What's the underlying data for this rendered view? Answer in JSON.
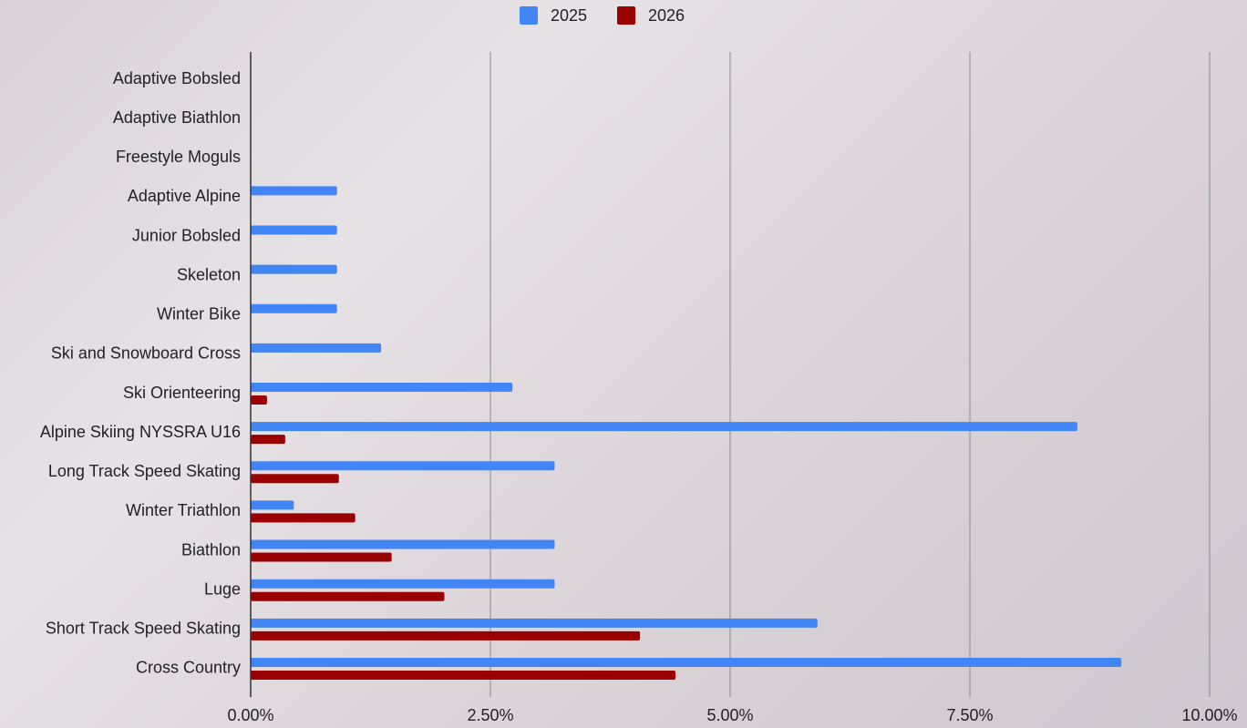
{
  "chart_data": {
    "type": "bar",
    "orientation": "horizontal",
    "categories": [
      "Adaptive Bobsled",
      "Adaptive Biathlon",
      "Freestyle Moguls",
      "Adaptive Alpine",
      "Junior Bobsled",
      "Skeleton",
      "Winter Bike",
      "Ski and Snowboard Cross",
      "Ski Orienteering",
      "Alpine Skiing NYSSRA U16",
      "Long Track Speed Skating",
      "Winter Triathlon",
      "Biathlon",
      "Luge",
      "Short Track Speed Skating",
      "Cross Country"
    ],
    "series": [
      {
        "name": "2025",
        "color": "#4285f4",
        "values": [
          0,
          0,
          0,
          0.9,
          0.9,
          0.9,
          0.9,
          1.36,
          2.73,
          8.62,
          3.17,
          0.45,
          3.17,
          3.17,
          5.91,
          9.08
        ]
      },
      {
        "name": "2026",
        "color": "#990000",
        "values": [
          0,
          0,
          0,
          0,
          0,
          0,
          0,
          0,
          0.17,
          0.36,
          0.92,
          1.09,
          1.47,
          2.02,
          4.06,
          4.43
        ]
      }
    ],
    "xlim": [
      0,
      10
    ],
    "xticks": [
      {
        "value": 0,
        "label": "0.00%"
      },
      {
        "value": 2.5,
        "label": "2.50%"
      },
      {
        "value": 5,
        "label": "5.00%"
      },
      {
        "value": 7.5,
        "label": "7.50%"
      },
      {
        "value": 10,
        "label": "10.00%"
      }
    ],
    "grid": true,
    "legend": "top"
  }
}
